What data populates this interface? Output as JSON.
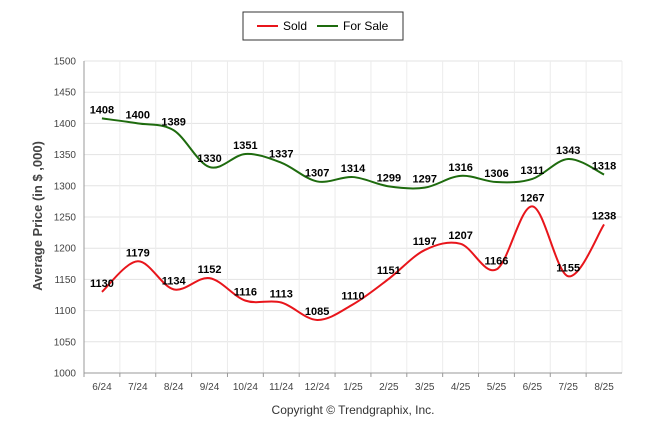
{
  "chart_data": {
    "type": "line",
    "categories": [
      "6/24",
      "7/24",
      "8/24",
      "9/24",
      "10/24",
      "11/24",
      "12/24",
      "1/25",
      "2/25",
      "3/25",
      "4/25",
      "5/25",
      "6/25",
      "7/25",
      "8/25"
    ],
    "series": [
      {
        "name": "Sold",
        "color": "#e8151b",
        "values": [
          1130,
          1179,
          1134,
          1152,
          1116,
          1113,
          1085,
          1110,
          1151,
          1197,
          1207,
          1166,
          1267,
          1155,
          1238
        ]
      },
      {
        "name": "For Sale",
        "color": "#1e6b0e",
        "values": [
          1408,
          1400,
          1389,
          1330,
          1351,
          1337,
          1307,
          1314,
          1299,
          1297,
          1316,
          1306,
          1311,
          1343,
          1318
        ]
      }
    ],
    "ylabel": "Average Price (in $ ,000)",
    "ylim": [
      1000,
      1500
    ],
    "yticks": [
      1000,
      1050,
      1100,
      1150,
      1200,
      1250,
      1300,
      1350,
      1400,
      1450,
      1500
    ],
    "grid": true,
    "legend_position": "top-center"
  },
  "footer": "Copyright © Trendgraphix, Inc."
}
